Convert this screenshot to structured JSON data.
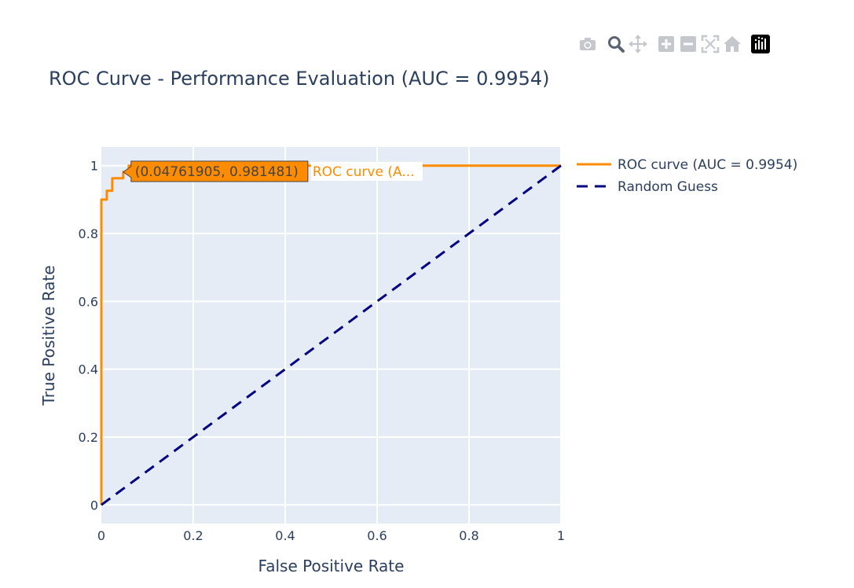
{
  "toolbar": {
    "buttons": [
      {
        "name": "camera-icon"
      },
      {
        "name": "zoom-icon"
      },
      {
        "name": "pan-icon"
      },
      {
        "name": "zoom-in-icon"
      },
      {
        "name": "zoom-out-icon"
      },
      {
        "name": "autoscale-icon"
      },
      {
        "name": "home-icon"
      },
      {
        "name": "plotly-logo-icon"
      }
    ]
  },
  "colors": {
    "roc": "#ff8c00",
    "random": "#000080",
    "plot_bg": "#e5ecf6",
    "text": "#2a3f5f",
    "grid": "#ffffff"
  },
  "chart_data": {
    "type": "line",
    "title": "ROC Curve - Performance Evaluation (AUC = 0.9954)",
    "xlabel": "False Positive Rate",
    "ylabel": "True Positive Rate",
    "xlim": [
      0,
      1
    ],
    "ylim": [
      -0.055,
      1.055
    ],
    "x_ticks": [
      0,
      0.2,
      0.4,
      0.6,
      0.8,
      1
    ],
    "x_tick_labels": [
      "0",
      "0.2",
      "0.4",
      "0.6",
      "0.8",
      "1"
    ],
    "y_ticks": [
      0,
      0.2,
      0.4,
      0.6,
      0.8,
      1
    ],
    "y_tick_labels": [
      "0",
      "0.2",
      "0.4",
      "0.6",
      "0.8",
      "1"
    ],
    "grid": true,
    "legend_position": "top-right-outside",
    "series": [
      {
        "name": "ROC curve (AUC = 0.9954)",
        "color": "#ff8c00",
        "dash": "solid",
        "x": [
          0,
          0,
          0,
          0.0119,
          0.0119,
          0.0238,
          0.0238,
          0.0357,
          0.0357,
          0.0476,
          0.0476,
          0.0476,
          0.0595,
          0.0595,
          1
        ],
        "y": [
          0,
          0.9,
          0.9,
          0.9,
          0.926,
          0.926,
          0.963,
          0.963,
          0.963,
          0.963,
          0.981481,
          0.981481,
          0.981481,
          1,
          1
        ]
      },
      {
        "name": "Random Guess",
        "color": "#000080",
        "dash": "dash",
        "x": [
          0,
          1
        ],
        "y": [
          0,
          1
        ]
      }
    ],
    "hover": {
      "point_x": 0.04761905,
      "point_y": 0.981481,
      "text": "(0.04761905, 0.981481)",
      "series_label": "ROC curve (A..."
    }
  }
}
